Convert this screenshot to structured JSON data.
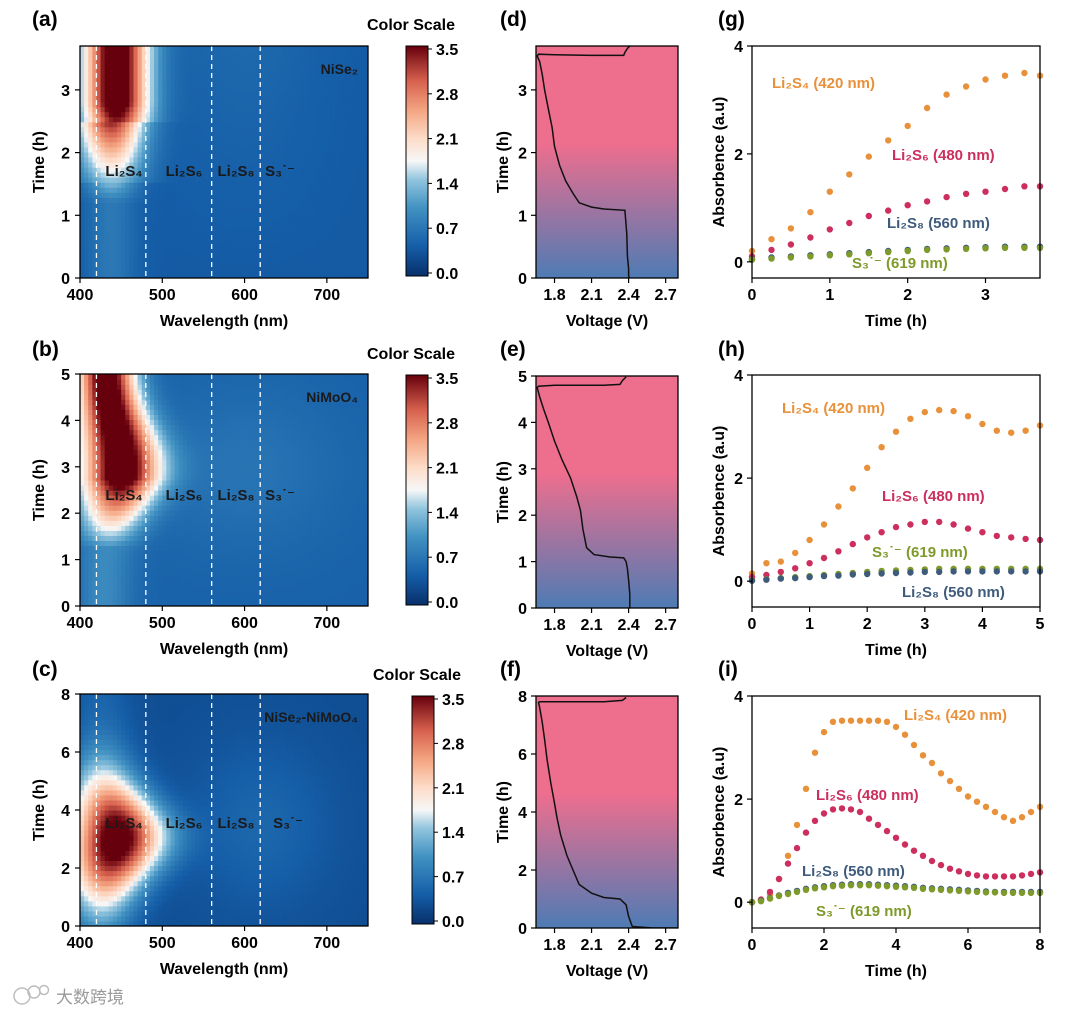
{
  "colors": {
    "li2s4": "#E8913A",
    "li2s6": "#CC2E5E",
    "li2s8": "#3F5B7C",
    "s3": "#7E9A2A",
    "voltage_top": "#EE6E8E",
    "voltage_bottom": "#4E7BB4"
  },
  "colorbar": {
    "title": "Color Scale",
    "ticks": [
      "3.5",
      "2.8",
      "2.1",
      "1.4",
      "0.7",
      "0.0"
    ],
    "range": [
      0.0,
      3.5
    ],
    "colormap": "RdBu_r"
  },
  "watermark": {
    "icon": "wechat-like-logo-icon",
    "text": "大数跨境"
  },
  "chart_data": [
    {
      "panel": "(a)",
      "type": "heatmap",
      "material": "NiSe₂",
      "xlabel": "Wavelength (nm)",
      "ylabel": "Time (h)",
      "xlim": [
        400,
        750
      ],
      "ylim": [
        0,
        3.7
      ],
      "xticks": [
        "400",
        "500",
        "600",
        "700"
      ],
      "yticks": [
        "0",
        "1",
        "2",
        "3"
      ],
      "marker_lines_nm": [
        420,
        480,
        560,
        619
      ],
      "species_labels": [
        "Li₂S₄",
        "Li₂S₆",
        "Li₂S₈",
        "S₃˙⁻"
      ]
    },
    {
      "panel": "(b)",
      "type": "heatmap",
      "material": "NiMoO₄",
      "xlabel": "Wavelength (nm)",
      "ylabel": "Time (h)",
      "xlim": [
        400,
        750
      ],
      "ylim": [
        0,
        5
      ],
      "xticks": [
        "400",
        "500",
        "600",
        "700"
      ],
      "yticks": [
        "0",
        "1",
        "2",
        "3",
        "4",
        "5"
      ],
      "marker_lines_nm": [
        420,
        480,
        560,
        619
      ],
      "species_labels": [
        "Li₂S₄",
        "Li₂S₆",
        "Li₂S₈",
        "S₃˙⁻"
      ]
    },
    {
      "panel": "(c)",
      "type": "heatmap",
      "material": "NiSe₂-NiMoO₄",
      "xlabel": "Wavelength (nm)",
      "ylabel": "Time (h)",
      "xlim": [
        400,
        750
      ],
      "ylim": [
        0,
        8
      ],
      "xticks": [
        "400",
        "500",
        "600",
        "700"
      ],
      "yticks": [
        "0",
        "2",
        "4",
        "6",
        "8"
      ],
      "marker_lines_nm": [
        420,
        480,
        560,
        619
      ],
      "species_labels": [
        "Li₂S₄",
        "Li₂S₆",
        "Li₂S₈",
        "S₃˙⁻"
      ]
    },
    {
      "panel": "(d)",
      "type": "line",
      "xlabel": "Voltage (V)",
      "ylabel": "Time (h)",
      "xlim": [
        1.65,
        2.8
      ],
      "ylim": [
        0,
        3.7
      ],
      "xticks": [
        "1.8",
        "2.1",
        "2.4",
        "2.7"
      ],
      "yticks": [
        "0",
        "1",
        "2",
        "3"
      ],
      "x": [
        2.405,
        2.4,
        2.4,
        2.39,
        2.385,
        2.37,
        2.2,
        2.1,
        2.0,
        1.95,
        1.89,
        1.84,
        1.8,
        1.78,
        1.75,
        1.72,
        1.7,
        1.68,
        1.66,
        1.67,
        1.8,
        2.1,
        2.3,
        2.36,
        2.37,
        2.39,
        2.42
      ],
      "y": [
        0.0,
        0.05,
        0.15,
        0.35,
        0.7,
        1.08,
        1.1,
        1.13,
        1.2,
        1.35,
        1.55,
        1.8,
        2.1,
        2.4,
        2.7,
        3.0,
        3.25,
        3.45,
        3.54,
        3.57,
        3.56,
        3.55,
        3.55,
        3.55,
        3.6,
        3.66,
        3.72
      ]
    },
    {
      "panel": "(e)",
      "type": "line",
      "xlabel": "Voltage (V)",
      "ylabel": "Time (h)",
      "xlim": [
        1.65,
        2.8
      ],
      "ylim": [
        0,
        5
      ],
      "xticks": [
        "1.8",
        "2.1",
        "2.4",
        "2.7"
      ],
      "yticks": [
        "0",
        "1",
        "2",
        "3",
        "4",
        "5"
      ],
      "x": [
        2.41,
        2.41,
        2.4,
        2.39,
        2.38,
        2.36,
        2.25,
        2.12,
        2.06,
        2.03,
        2.01,
        1.98,
        1.93,
        1.86,
        1.8,
        1.75,
        1.71,
        1.68,
        1.66,
        1.67,
        1.8,
        2.2,
        2.33,
        2.35,
        2.38
      ],
      "y": [
        0.0,
        0.3,
        0.6,
        0.85,
        1.0,
        1.08,
        1.1,
        1.15,
        1.3,
        1.7,
        2.1,
        2.4,
        2.8,
        3.2,
        3.6,
        4.0,
        4.3,
        4.55,
        4.75,
        4.78,
        4.8,
        4.8,
        4.82,
        4.9,
        4.98
      ]
    },
    {
      "panel": "(f)",
      "type": "line",
      "xlabel": "Voltage (V)",
      "ylabel": "Time (h)",
      "xlim": [
        1.65,
        2.8
      ],
      "ylim": [
        0,
        8
      ],
      "xticks": [
        "1.8",
        "2.1",
        "2.4",
        "2.7"
      ],
      "yticks": [
        "0",
        "2",
        "4",
        "6",
        "8"
      ],
      "x": [
        2.8,
        2.6,
        2.43,
        2.4,
        2.38,
        2.33,
        2.2,
        2.1,
        2.0,
        1.95,
        1.9,
        1.85,
        1.82,
        1.8,
        1.77,
        1.74,
        1.72,
        1.7,
        1.68,
        1.67,
        1.68,
        1.9,
        2.2,
        2.35,
        2.38
      ],
      "y": [
        0.0,
        0.0,
        0.05,
        0.4,
        0.8,
        1.0,
        1.05,
        1.2,
        1.5,
        2.0,
        2.5,
        3.2,
        3.8,
        4.3,
        5.0,
        5.8,
        6.5,
        7.1,
        7.6,
        7.78,
        7.8,
        7.8,
        7.8,
        7.85,
        7.95
      ]
    },
    {
      "panel": "(g)",
      "type": "scatter",
      "xlabel": "Time (h)",
      "ylabel": "Absorbence (a.u)",
      "xlim": [
        0,
        3.7
      ],
      "ylim": [
        -0.3,
        4
      ],
      "xticks": [
        "0",
        "1",
        "2",
        "3"
      ],
      "yticks": [
        "0",
        "2",
        "4"
      ],
      "series": [
        {
          "name": "Li₂S₄ (420 nm)",
          "x": [
            0,
            0.25,
            0.5,
            0.75,
            1.0,
            1.25,
            1.5,
            1.75,
            2.0,
            2.25,
            2.5,
            2.75,
            3.0,
            3.25,
            3.5,
            3.7
          ],
          "y": [
            0.2,
            0.42,
            0.62,
            0.92,
            1.3,
            1.62,
            1.95,
            2.25,
            2.52,
            2.85,
            3.1,
            3.25,
            3.38,
            3.45,
            3.5,
            3.45
          ]
        },
        {
          "name": "Li₂S₆ (480 nm)",
          "x": [
            0,
            0.25,
            0.5,
            0.75,
            1.0,
            1.25,
            1.5,
            1.75,
            2.0,
            2.25,
            2.5,
            2.75,
            3.0,
            3.25,
            3.5,
            3.7
          ],
          "y": [
            0.1,
            0.22,
            0.32,
            0.45,
            0.6,
            0.72,
            0.85,
            0.95,
            1.05,
            1.12,
            1.2,
            1.26,
            1.3,
            1.35,
            1.4,
            1.4
          ]
        },
        {
          "name": "Li₂S₈ (560 nm)",
          "x": [
            0,
            0.25,
            0.5,
            0.75,
            1.0,
            1.25,
            1.5,
            1.75,
            2.0,
            2.25,
            2.5,
            2.75,
            3.0,
            3.25,
            3.5,
            3.7
          ],
          "y": [
            0.05,
            0.08,
            0.1,
            0.12,
            0.14,
            0.16,
            0.18,
            0.2,
            0.22,
            0.24,
            0.25,
            0.26,
            0.27,
            0.28,
            0.28,
            0.28
          ]
        },
        {
          "name": "S₃˙⁻ (619 nm)",
          "x": [
            0,
            0.25,
            0.5,
            0.75,
            1.0,
            1.25,
            1.5,
            1.75,
            2.0,
            2.25,
            2.5,
            2.75,
            3.0,
            3.25,
            3.5,
            3.7
          ],
          "y": [
            0.04,
            0.06,
            0.08,
            0.1,
            0.12,
            0.14,
            0.16,
            0.18,
            0.2,
            0.22,
            0.23,
            0.24,
            0.25,
            0.26,
            0.26,
            0.26
          ]
        }
      ]
    },
    {
      "panel": "(h)",
      "type": "scatter",
      "xlabel": "Time (h)",
      "ylabel": "Absorbence (a.u)",
      "xlim": [
        0,
        5
      ],
      "ylim": [
        -0.5,
        4
      ],
      "xticks": [
        "0",
        "1",
        "2",
        "3",
        "4",
        "5"
      ],
      "yticks": [
        "0",
        "2",
        "4"
      ],
      "series": [
        {
          "name": "Li₂S₄ (420 nm)",
          "x": [
            0,
            0.25,
            0.5,
            0.75,
            1.0,
            1.25,
            1.5,
            1.75,
            2.0,
            2.25,
            2.5,
            2.75,
            3.0,
            3.25,
            3.5,
            3.75,
            4.0,
            4.25,
            4.5,
            4.75,
            5.0
          ],
          "y": [
            0.15,
            0.35,
            0.38,
            0.55,
            0.8,
            1.1,
            1.45,
            1.8,
            2.2,
            2.6,
            2.9,
            3.15,
            3.28,
            3.32,
            3.3,
            3.2,
            3.05,
            2.92,
            2.88,
            2.92,
            3.02
          ]
        },
        {
          "name": "Li₂S₆ (480 nm)",
          "x": [
            0,
            0.25,
            0.5,
            0.75,
            1.0,
            1.25,
            1.5,
            1.75,
            2.0,
            2.25,
            2.5,
            2.75,
            3.0,
            3.25,
            3.5,
            3.75,
            4.0,
            4.25,
            4.5,
            4.75,
            5.0
          ],
          "y": [
            0.08,
            0.12,
            0.18,
            0.25,
            0.35,
            0.45,
            0.58,
            0.72,
            0.85,
            0.95,
            1.05,
            1.1,
            1.15,
            1.15,
            1.1,
            1.02,
            0.95,
            0.88,
            0.85,
            0.82,
            0.8
          ]
        },
        {
          "name": "S₃˙⁻ (619 nm)",
          "x": [
            0,
            0.25,
            0.5,
            0.75,
            1.0,
            1.25,
            1.5,
            1.75,
            2.0,
            2.25,
            2.5,
            2.75,
            3.0,
            3.25,
            3.5,
            3.75,
            4.0,
            4.25,
            4.5,
            4.75,
            5.0
          ],
          "y": [
            0.02,
            0.04,
            0.06,
            0.08,
            0.1,
            0.12,
            0.14,
            0.16,
            0.18,
            0.2,
            0.21,
            0.22,
            0.23,
            0.24,
            0.24,
            0.24,
            0.24,
            0.24,
            0.24,
            0.24,
            0.24
          ]
        },
        {
          "name": "Li₂S₈ (560 nm)",
          "x": [
            0,
            0.25,
            0.5,
            0.75,
            1.0,
            1.25,
            1.5,
            1.75,
            2.0,
            2.25,
            2.5,
            2.75,
            3.0,
            3.25,
            3.5,
            3.75,
            4.0,
            4.25,
            4.5,
            4.75,
            5.0
          ],
          "y": [
            0.01,
            0.03,
            0.05,
            0.06,
            0.08,
            0.1,
            0.11,
            0.13,
            0.14,
            0.15,
            0.16,
            0.17,
            0.18,
            0.18,
            0.19,
            0.19,
            0.19,
            0.19,
            0.19,
            0.19,
            0.19
          ]
        }
      ]
    },
    {
      "panel": "(i)",
      "type": "scatter",
      "xlabel": "Time (h)",
      "ylabel": "Absorbence (a.u)",
      "xlim": [
        0,
        8
      ],
      "ylim": [
        -0.5,
        4
      ],
      "xticks": [
        "0",
        "2",
        "4",
        "6",
        "8"
      ],
      "yticks": [
        "0",
        "2",
        "4"
      ],
      "series": [
        {
          "name": "Li₂S₄ (420 nm)",
          "x": [
            0,
            0.25,
            0.5,
            0.75,
            1.0,
            1.25,
            1.5,
            1.75,
            2.0,
            2.25,
            2.5,
            2.75,
            3.0,
            3.25,
            3.5,
            3.75,
            4.0,
            4.25,
            4.5,
            4.75,
            5.0,
            5.25,
            5.5,
            5.75,
            6.0,
            6.25,
            6.5,
            6.75,
            7.0,
            7.25,
            7.5,
            7.75,
            8.0
          ],
          "y": [
            0.0,
            0.05,
            0.15,
            0.45,
            0.9,
            1.5,
            2.2,
            2.9,
            3.3,
            3.5,
            3.52,
            3.52,
            3.52,
            3.52,
            3.52,
            3.5,
            3.4,
            3.25,
            3.05,
            2.85,
            2.7,
            2.5,
            2.35,
            2.2,
            2.05,
            1.95,
            1.85,
            1.75,
            1.65,
            1.58,
            1.65,
            1.75,
            1.85
          ]
        },
        {
          "name": "Li₂S₆ (480 nm)",
          "x": [
            0,
            0.25,
            0.5,
            0.75,
            1.0,
            1.25,
            1.5,
            1.75,
            2.0,
            2.25,
            2.5,
            2.75,
            3.0,
            3.25,
            3.5,
            3.75,
            4.0,
            4.25,
            4.5,
            4.75,
            5.0,
            5.25,
            5.5,
            5.75,
            6.0,
            6.25,
            6.5,
            6.75,
            7.0,
            7.25,
            7.5,
            7.75,
            8.0
          ],
          "y": [
            0.0,
            0.05,
            0.2,
            0.45,
            0.75,
            1.05,
            1.35,
            1.58,
            1.72,
            1.8,
            1.82,
            1.8,
            1.75,
            1.62,
            1.5,
            1.38,
            1.25,
            1.12,
            1.0,
            0.9,
            0.8,
            0.72,
            0.65,
            0.6,
            0.55,
            0.52,
            0.5,
            0.5,
            0.5,
            0.5,
            0.52,
            0.55,
            0.58
          ]
        },
        {
          "name": "Li₂S₈ (560 nm)",
          "x": [
            0,
            0.25,
            0.5,
            0.75,
            1.0,
            1.25,
            1.5,
            1.75,
            2.0,
            2.25,
            2.5,
            2.75,
            3.0,
            3.25,
            3.5,
            3.75,
            4.0,
            4.25,
            4.5,
            4.75,
            5.0,
            5.25,
            5.5,
            5.75,
            6.0,
            6.25,
            6.5,
            6.75,
            7.0,
            7.25,
            7.5,
            7.75,
            8.0
          ],
          "y": [
            0.0,
            0.03,
            0.08,
            0.13,
            0.18,
            0.22,
            0.26,
            0.29,
            0.31,
            0.33,
            0.34,
            0.35,
            0.35,
            0.35,
            0.34,
            0.33,
            0.32,
            0.31,
            0.3,
            0.28,
            0.27,
            0.26,
            0.25,
            0.24,
            0.23,
            0.22,
            0.21,
            0.2,
            0.2,
            0.2,
            0.2,
            0.2,
            0.2
          ]
        },
        {
          "name": "S₃˙⁻ (619 nm)",
          "x": [
            0,
            0.25,
            0.5,
            0.75,
            1.0,
            1.25,
            1.5,
            1.75,
            2.0,
            2.25,
            2.5,
            2.75,
            3.0,
            3.25,
            3.5,
            3.75,
            4.0,
            4.25,
            4.5,
            4.75,
            5.0,
            5.25,
            5.5,
            5.75,
            6.0,
            6.25,
            6.5,
            6.75,
            7.0,
            7.25,
            7.5,
            7.75,
            8.0
          ],
          "y": [
            0.0,
            0.02,
            0.07,
            0.12,
            0.16,
            0.2,
            0.24,
            0.27,
            0.29,
            0.31,
            0.32,
            0.33,
            0.33,
            0.33,
            0.32,
            0.31,
            0.3,
            0.29,
            0.28,
            0.26,
            0.25,
            0.24,
            0.23,
            0.22,
            0.21,
            0.2,
            0.19,
            0.19,
            0.18,
            0.18,
            0.18,
            0.18,
            0.18
          ]
        }
      ]
    }
  ]
}
